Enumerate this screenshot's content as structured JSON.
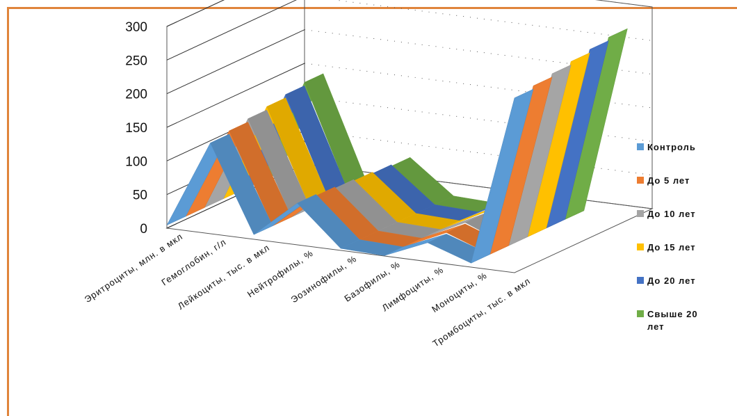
{
  "chart_data": {
    "type": "area",
    "title": "",
    "xlabel": "",
    "ylabel": "",
    "ylim": [
      0,
      300
    ],
    "yticks": [
      "0",
      "50",
      "100",
      "150",
      "200",
      "250",
      "300"
    ],
    "grid": true,
    "legend_position": "right",
    "categories": [
      "Эритроциты, млн. в мкл",
      "Гемоглобин, г/л",
      "Лейкоциты, тыс. в мкл",
      "Нейтрофилы, %",
      "Эозинофилы, %",
      "Базофилы, %",
      "Лимфоциты, %",
      "Моноциты, %",
      "Тромбоциты, тыс. в мкл"
    ],
    "series": [
      {
        "name": "Контроль",
        "color": "#5b9bd5",
        "values": [
          4.5,
          135,
          7,
          62,
          3,
          0.5,
          28,
          6,
          260
        ]
      },
      {
        "name": "До 5 лет",
        "color": "#ed7d31",
        "values": [
          4.5,
          140,
          7,
          60,
          3,
          0.5,
          30,
          6,
          265
        ]
      },
      {
        "name": "До 10 лет",
        "color": "#a5a5a5",
        "values": [
          4.6,
          145,
          7,
          58,
          3,
          0.5,
          32,
          6,
          270
        ]
      },
      {
        "name": "До 15 лет",
        "color": "#ffc000",
        "values": [
          4.6,
          150,
          7,
          56,
          3,
          0.5,
          34,
          6,
          275
        ]
      },
      {
        "name": "До 20 лет",
        "color": "#4472c4",
        "values": [
          4.7,
          155,
          7,
          54,
          3,
          0.5,
          36,
          6,
          280
        ]
      },
      {
        "name": "Свыше 20 лет",
        "color": "#70ad47",
        "values": [
          4.7,
          160,
          7,
          52,
          3,
          0.5,
          38,
          6,
          285
        ]
      }
    ]
  }
}
